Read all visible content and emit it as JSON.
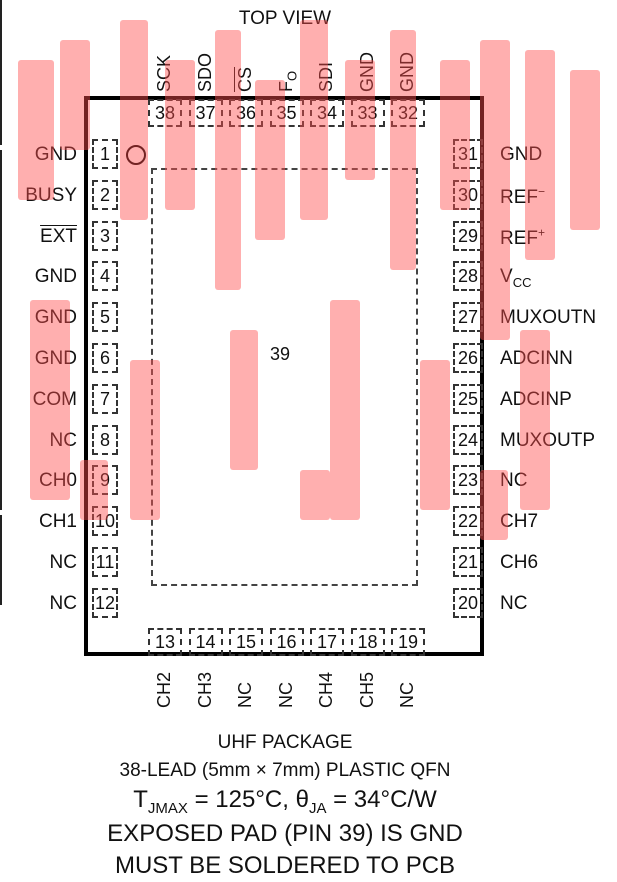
{
  "title": "TOP VIEW",
  "exposed_pad_number": "39",
  "pins_left": [
    {
      "num": "1",
      "name": "GND"
    },
    {
      "num": "2",
      "name": "BUSY"
    },
    {
      "num": "3",
      "name": "EXT"
    },
    {
      "num": "4",
      "name": "GND"
    },
    {
      "num": "5",
      "name": "GND"
    },
    {
      "num": "6",
      "name": "GND"
    },
    {
      "num": "7",
      "name": "COM"
    },
    {
      "num": "8",
      "name": "NC"
    },
    {
      "num": "9",
      "name": "CH0"
    },
    {
      "num": "10",
      "name": "CH1"
    },
    {
      "num": "11",
      "name": "NC"
    },
    {
      "num": "12",
      "name": "NC"
    }
  ],
  "pins_right": [
    {
      "num": "31",
      "name": "GND"
    },
    {
      "num": "30",
      "name": "REF",
      "sup": "−"
    },
    {
      "num": "29",
      "name": "REF",
      "sup": "+"
    },
    {
      "num": "28",
      "name": "V",
      "sub": "CC"
    },
    {
      "num": "27",
      "name": "MUXOUTN"
    },
    {
      "num": "26",
      "name": "ADCINN"
    },
    {
      "num": "25",
      "name": "ADCINP"
    },
    {
      "num": "24",
      "name": "MUXOUTP"
    },
    {
      "num": "23",
      "name": "NC"
    },
    {
      "num": "22",
      "name": "CH7"
    },
    {
      "num": "21",
      "name": "CH6"
    },
    {
      "num": "20",
      "name": "NC"
    }
  ],
  "pins_top": [
    {
      "num": "38",
      "name": "SCK"
    },
    {
      "num": "37",
      "name": "SDO"
    },
    {
      "num": "36",
      "name": "CS"
    },
    {
      "num": "35",
      "name": "F",
      "sub": "O"
    },
    {
      "num": "34",
      "name": "SDI"
    },
    {
      "num": "33",
      "name": "GND"
    },
    {
      "num": "32",
      "name": "GND"
    }
  ],
  "pins_bottom": [
    {
      "num": "13",
      "name": "CH2"
    },
    {
      "num": "14",
      "name": "CH3"
    },
    {
      "num": "15",
      "name": "NC"
    },
    {
      "num": "16",
      "name": "NC"
    },
    {
      "num": "17",
      "name": "CH4"
    },
    {
      "num": "18",
      "name": "CH5"
    },
    {
      "num": "19",
      "name": "NC"
    }
  ],
  "notes": {
    "package": "UHF PACKAGE",
    "lead": "38-LEAD (5mm × 7mm) PLASTIC QFN",
    "thermal_a": "T",
    "thermal_a_sub": "JMAX",
    "thermal_b": " = 125°C, θ",
    "thermal_b_sub": "JA",
    "thermal_c": " = 34°C/W",
    "exposed": "EXPOSED PAD (PIN 39) IS GND",
    "solder": "MUST BE SOLDERED TO PCB"
  },
  "colors": {
    "watermark": "#ff4d4d",
    "line": "#000000"
  }
}
